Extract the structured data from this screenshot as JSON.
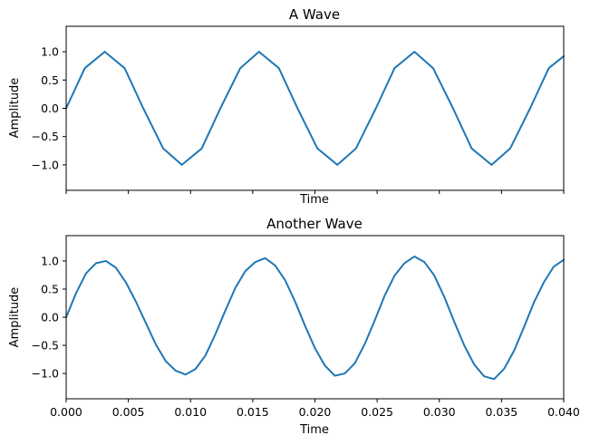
{
  "chart_data": [
    {
      "type": "line",
      "title": "A Wave",
      "xlabel": "Time",
      "ylabel": "Amplitude",
      "xlim": [
        0,
        0.04
      ],
      "ylim": [
        -1.45,
        1.45
      ],
      "x_ticks": [
        0,
        0.005,
        0.01,
        0.015,
        0.02,
        0.025,
        0.03,
        0.035,
        0.04
      ],
      "x_tick_labels_visible": false,
      "y_ticks": [
        1.0,
        0.5,
        0.0,
        -0.5,
        -1.0
      ],
      "y_tick_labels": [
        "1.0",
        "0.5",
        "0.0",
        "−0.5",
        "−1.0"
      ],
      "grid": false,
      "series": [
        {
          "color": "#1f77b4",
          "x": [
            0,
            0.0015,
            0.0031,
            0.0047,
            0.0062,
            0.0078,
            0.0093,
            0.0109,
            0.0124,
            0.014,
            0.0155,
            0.0171,
            0.0186,
            0.0202,
            0.0218,
            0.0233,
            0.0249,
            0.0264,
            0.028,
            0.0295,
            0.0311,
            0.0326,
            0.0342,
            0.0357,
            0.0373,
            0.0388,
            0.04
          ],
          "y": [
            0,
            0.71,
            1.0,
            0.71,
            0,
            -0.71,
            -1.0,
            -0.71,
            0,
            0.71,
            1.0,
            0.71,
            0,
            -0.71,
            -1.0,
            -0.71,
            0,
            0.71,
            1.0,
            0.71,
            0,
            -0.71,
            -1.0,
            -0.71,
            0,
            0.71,
            0.92
          ]
        }
      ]
    },
    {
      "type": "line",
      "title": "Another Wave",
      "xlabel": "Time",
      "ylabel": "Amplitude",
      "xlim": [
        0,
        0.04
      ],
      "ylim": [
        -1.45,
        1.45
      ],
      "x_ticks": [
        0,
        0.005,
        0.01,
        0.015,
        0.02,
        0.025,
        0.03,
        0.035,
        0.04
      ],
      "x_tick_labels": [
        "0.000",
        "0.005",
        "0.010",
        "0.015",
        "0.020",
        "0.025",
        "0.030",
        "0.035",
        "0.040"
      ],
      "y_ticks": [
        1.0,
        0.5,
        0.0,
        -0.5,
        -1.0
      ],
      "y_tick_labels": [
        "1.0",
        "0.5",
        "0.0",
        "−0.5",
        "−1.0"
      ],
      "grid": false,
      "series": [
        {
          "color": "#1f77b4",
          "x": [
            0,
            0.0008,
            0.0016,
            0.0024,
            0.0032,
            0.004,
            0.0048,
            0.0056,
            0.0064,
            0.0072,
            0.008,
            0.0088,
            0.0096,
            0.0104,
            0.0112,
            0.012,
            0.0128,
            0.0136,
            0.0144,
            0.0152,
            0.016,
            0.0168,
            0.0176,
            0.0184,
            0.0192,
            0.02,
            0.0208,
            0.0216,
            0.0224,
            0.0232,
            0.024,
            0.0248,
            0.0256,
            0.0264,
            0.0272,
            0.028,
            0.0288,
            0.0296,
            0.0304,
            0.0312,
            0.032,
            0.0328,
            0.0336,
            0.0344,
            0.0352,
            0.036,
            0.0368,
            0.0376,
            0.0384,
            0.0392,
            0.04
          ],
          "y": [
            0.0,
            0.43,
            0.78,
            0.96,
            1.0,
            0.88,
            0.62,
            0.28,
            -0.1,
            -0.48,
            -0.78,
            -0.95,
            -1.02,
            -0.92,
            -0.68,
            -0.3,
            0.12,
            0.52,
            0.82,
            0.98,
            1.05,
            0.92,
            0.66,
            0.28,
            -0.15,
            -0.55,
            -0.86,
            -1.04,
            -1.0,
            -0.82,
            -0.48,
            -0.06,
            0.38,
            0.74,
            0.96,
            1.08,
            0.98,
            0.74,
            0.36,
            -0.08,
            -0.5,
            -0.84,
            -1.05,
            -1.1,
            -0.92,
            -0.6,
            -0.18,
            0.26,
            0.62,
            0.9,
            1.02
          ]
        }
      ]
    }
  ]
}
